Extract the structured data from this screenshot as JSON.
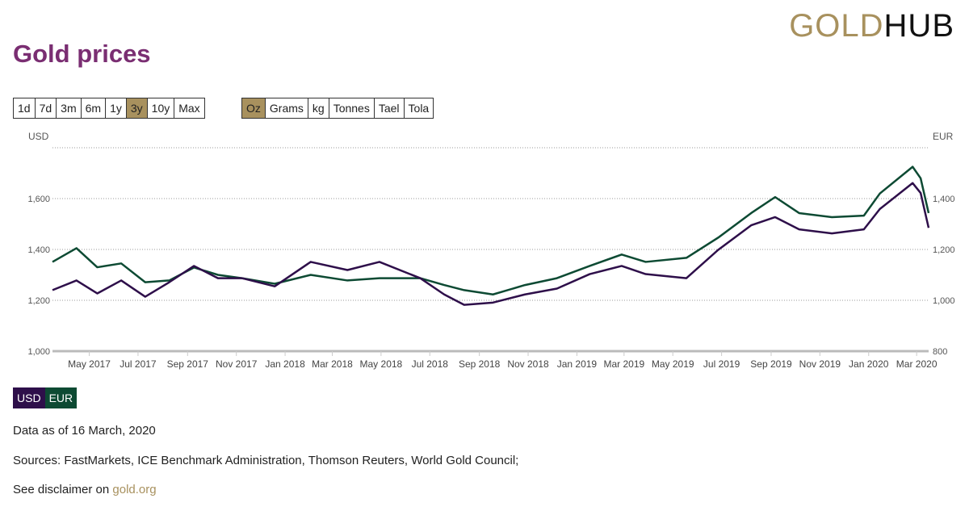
{
  "logo": {
    "gold": "GOLD",
    "hub": "HUB"
  },
  "title": "Gold prices",
  "range_buttons": [
    "1d",
    "7d",
    "3m",
    "6m",
    "1y",
    "3y",
    "10y",
    "Max"
  ],
  "range_selected": "3y",
  "unit_buttons": [
    "Oz",
    "Grams",
    "kg",
    "Tonnes",
    "Tael",
    "Tola"
  ],
  "unit_selected": "Oz",
  "legend": [
    "USD",
    "EUR"
  ],
  "footer": {
    "data_as_of": "Data as of 16 March, 2020",
    "sources": "Sources: FastMarkets, ICE Benchmark Administration, Thomson Reuters, World Gold Council;",
    "disclaimer": "See disclaimer on ",
    "link": "gold.org"
  },
  "colors": {
    "usd": "#2e0f4a",
    "eur": "#0d4a33",
    "accent": "#a8915e"
  },
  "chart_data": {
    "type": "line",
    "left_axis_label": "USD",
    "right_axis_label": "EUR",
    "ylim_usd": [
      1000,
      1800
    ],
    "ylim_eur": [
      800,
      1600
    ],
    "y_ticks_usd": [
      "1,000",
      "1,200",
      "1,400",
      "1,600"
    ],
    "y_ticks_eur": [
      "800",
      "1,000",
      "1,200",
      "1,400"
    ],
    "x_range": [
      "2017-03-16",
      "2020-03-16"
    ],
    "x_ticks": [
      [
        "2017-05-01",
        "May 2017"
      ],
      [
        "2017-07-01",
        "Jul 2017"
      ],
      [
        "2017-09-01",
        "Sep 2017"
      ],
      [
        "2017-11-01",
        "Nov 2017"
      ],
      [
        "2018-01-01",
        "Jan 2018"
      ],
      [
        "2018-03-01",
        "Mar 2018"
      ],
      [
        "2018-05-01",
        "May 2018"
      ],
      [
        "2018-07-01",
        "Jul 2018"
      ],
      [
        "2018-09-01",
        "Sep 2018"
      ],
      [
        "2018-11-01",
        "Nov 2018"
      ],
      [
        "2019-01-01",
        "Jan 2019"
      ],
      [
        "2019-03-01",
        "Mar 2019"
      ],
      [
        "2019-05-01",
        "May 2019"
      ],
      [
        "2019-07-01",
        "Jul 2019"
      ],
      [
        "2019-09-01",
        "Sep 2019"
      ],
      [
        "2019-11-01",
        "Nov 2019"
      ],
      [
        "2020-01-01",
        "Jan 2020"
      ],
      [
        "2020-03-01",
        "Mar 2020"
      ]
    ],
    "x": [
      "2017-03-16",
      "2017-04-15",
      "2017-05-11",
      "2017-06-10",
      "2017-07-10",
      "2017-08-09",
      "2017-09-09",
      "2017-10-09",
      "2017-11-08",
      "2017-12-19",
      "2018-02-02",
      "2018-03-20",
      "2018-04-29",
      "2018-06-19",
      "2018-07-19",
      "2018-08-13",
      "2018-09-18",
      "2018-10-28",
      "2018-12-07",
      "2019-01-17",
      "2019-02-26",
      "2019-03-28",
      "2019-05-18",
      "2019-06-27",
      "2019-08-07",
      "2019-09-06",
      "2019-10-06",
      "2019-11-16",
      "2019-12-26",
      "2020-01-15",
      "2020-02-25",
      "2020-03-06",
      "2020-03-16"
    ],
    "series": [
      {
        "name": "USD",
        "axis": "left",
        "values": [
          1240,
          1278,
          1227,
          1278,
          1214,
          1271,
          1335,
          1287,
          1287,
          1255,
          1351,
          1319,
          1351,
          1287,
          1223,
          1182,
          1191,
          1223,
          1246,
          1303,
          1335,
          1303,
          1287,
          1399,
          1495,
          1527,
          1479,
          1463,
          1479,
          1559,
          1661,
          1622,
          1485
        ]
      },
      {
        "name": "EUR",
        "axis": "right",
        "values": [
          1151,
          1205,
          1130,
          1145,
          1071,
          1078,
          1129,
          1100,
          1087,
          1065,
          1100,
          1078,
          1087,
          1087,
          1060,
          1040,
          1023,
          1060,
          1087,
          1135,
          1180,
          1151,
          1167,
          1247,
          1343,
          1406,
          1343,
          1327,
          1333,
          1420,
          1525,
          1480,
          1343
        ]
      }
    ]
  }
}
